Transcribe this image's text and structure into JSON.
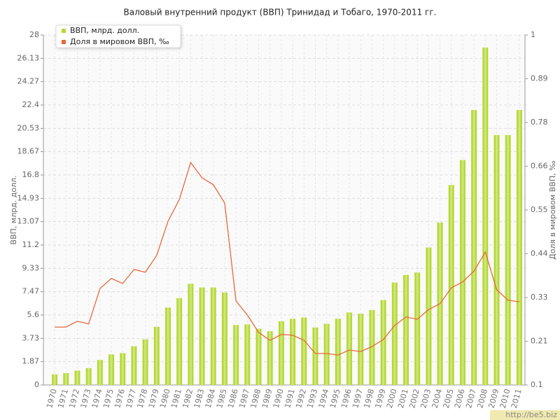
{
  "chart_data": {
    "type": "bar-line",
    "title": "Валовый внутренний продукт (ВВП) Тринидад и Тобаго, 1970-2011 гг.",
    "y_label": "ВВП, млрд. долл.",
    "y2_label": "Доля в мировом ВВП, ‰",
    "watermark": "http://be5.biz",
    "categories": [
      "1970",
      "1971",
      "1972",
      "1973",
      "1974",
      "1975",
      "1976",
      "1977",
      "1978",
      "1979",
      "1980",
      "1981",
      "1982",
      "1983",
      "1984",
      "1985",
      "1986",
      "1987",
      "1988",
      "1989",
      "1990",
      "1991",
      "1992",
      "1993",
      "1994",
      "1995",
      "1996",
      "1997",
      "1998",
      "1999",
      "2000",
      "2001",
      "2002",
      "2003",
      "2004",
      "2005",
      "2006",
      "2007",
      "2008",
      "2009",
      "2010",
      "2011"
    ],
    "series": [
      {
        "name": "ВВП, млрд. долл.",
        "color": "#b5d935",
        "kind": "bar",
        "values": [
          0.85,
          0.95,
          1.15,
          1.35,
          2.0,
          2.45,
          2.55,
          3.1,
          3.65,
          4.65,
          6.2,
          6.95,
          8.1,
          7.8,
          7.8,
          7.4,
          4.8,
          4.85,
          4.5,
          4.3,
          5.1,
          5.3,
          5.4,
          4.6,
          4.9,
          5.3,
          5.8,
          5.7,
          6.0,
          6.8,
          8.2,
          8.8,
          9.0,
          11.0,
          13.0,
          16.0,
          18.0,
          22.0,
          27.0,
          20.0,
          20.0,
          22.0
        ]
      },
      {
        "name": "Доля в мировом ВВП, ‰",
        "color": "#e8683a",
        "kind": "line",
        "axis": "y2",
        "values": [
          0.249,
          0.249,
          0.264,
          0.257,
          0.348,
          0.374,
          0.361,
          0.397,
          0.39,
          0.433,
          0.521,
          0.577,
          0.672,
          0.633,
          0.615,
          0.568,
          0.316,
          0.28,
          0.235,
          0.215,
          0.23,
          0.228,
          0.215,
          0.181,
          0.181,
          0.177,
          0.19,
          0.186,
          0.199,
          0.217,
          0.253,
          0.275,
          0.269,
          0.294,
          0.309,
          0.35,
          0.365,
          0.393,
          0.442,
          0.345,
          0.318,
          0.314
        ]
      }
    ],
    "ylim": [
      0,
      28
    ],
    "yticks": [
      0,
      1.87,
      3.73,
      5.6,
      7.47,
      9.33,
      11.2,
      13.07,
      14.93,
      16.8,
      18.67,
      20.53,
      22.4,
      24.27,
      26.13,
      28
    ],
    "y2lim": [
      0.1,
      1
    ],
    "y2ticks": [
      0.1,
      {
        "value": 0.2125,
        "label": "0.21"
      },
      {
        "value": 0.325,
        "label": "0.33"
      },
      {
        "value": 0.4375,
        "label": "0.44"
      },
      0.55,
      {
        "value": 0.6625,
        "label": "0.66"
      },
      {
        "value": 0.775,
        "label": "0.78"
      },
      {
        "value": 0.8875,
        "label": "0.89"
      },
      1
    ],
    "grid": true,
    "legend": "top-left"
  }
}
